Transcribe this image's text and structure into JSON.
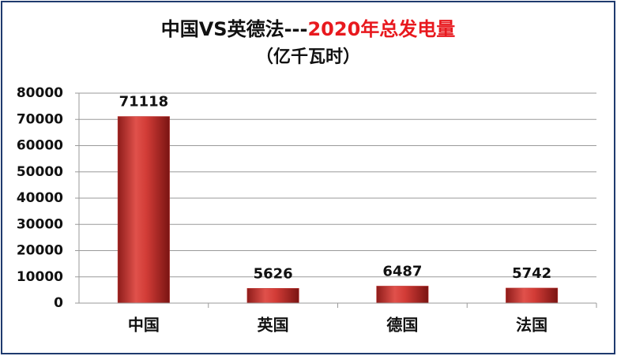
{
  "chart_data": {
    "type": "bar",
    "title": "中国VS英德法---",
    "title_highlight": "2020年总发电量",
    "title_highlight_color": "#e8191e",
    "subtitle": "（亿千瓦时）",
    "categories": [
      "中国",
      "英国",
      "德国",
      "法国"
    ],
    "values": [
      71118,
      5626,
      6487,
      5742
    ],
    "color": "#c0302c",
    "ylim": [
      0,
      80000
    ],
    "yticks": [
      0,
      10000,
      20000,
      30000,
      40000,
      50000,
      60000,
      70000,
      80000
    ],
    "grid": true
  }
}
